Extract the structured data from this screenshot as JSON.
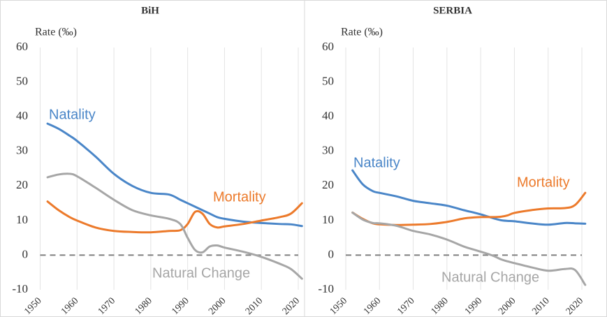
{
  "chart_data": [
    {
      "type": "line",
      "title": "BiH",
      "y_label": "Rate (‰)",
      "x": [
        1952,
        1955,
        1958,
        1960,
        1965,
        1970,
        1975,
        1980,
        1985,
        1988,
        1990,
        1992,
        1994,
        1996,
        1998,
        2000,
        2005,
        2010,
        2015,
        2018,
        2021
      ],
      "series": [
        {
          "name": "Natality",
          "color": "#4a86c8",
          "values": [
            38,
            36.5,
            34.5,
            33,
            28.5,
            23.5,
            20,
            18,
            17.5,
            16,
            15,
            14,
            13,
            12,
            11,
            10.5,
            9.7,
            9.3,
            9,
            8.9,
            8.4
          ]
        },
        {
          "name": "Mortality",
          "color": "#ec7a2b",
          "values": [
            15.5,
            13,
            11,
            10,
            8,
            7,
            6.7,
            6.6,
            7,
            7.2,
            9,
            12.5,
            12,
            9,
            8,
            8.3,
            9,
            10,
            11,
            12,
            15
          ]
        },
        {
          "name": "Natural Change",
          "color": "#a6a6a6",
          "values": [
            22.5,
            23.3,
            23.5,
            22.8,
            19.5,
            16,
            13,
            11.5,
            10.5,
            9,
            5,
            1.5,
            0.8,
            2.5,
            2.8,
            2.2,
            1,
            -0.5,
            -2.5,
            -4,
            -6.8
          ]
        }
      ],
      "xlim": [
        1950,
        2020
      ],
      "xticks": [
        1950,
        1960,
        1970,
        1980,
        1990,
        2000,
        2010,
        2020
      ],
      "ylim": [
        -10,
        60
      ],
      "yticks": [
        -10,
        0,
        10,
        20,
        30,
        40,
        50,
        60
      ],
      "grid": "x"
    },
    {
      "type": "line",
      "title": "SERBIA",
      "y_label": "Rate (‰)",
      "x": [
        1952,
        1955,
        1958,
        1960,
        1965,
        1970,
        1975,
        1980,
        1985,
        1988,
        1990,
        1992,
        1994,
        1996,
        1998,
        2000,
        2005,
        2010,
        2015,
        2018,
        2021
      ],
      "series": [
        {
          "name": "Natality",
          "color": "#4a86c8",
          "values": [
            24.5,
            20.5,
            18.5,
            18,
            17,
            15.7,
            15,
            14.3,
            13,
            12.3,
            11.8,
            11.2,
            10.6,
            10.1,
            9.9,
            9.8,
            9.2,
            8.8,
            9.3,
            9.2,
            9.1
          ]
        },
        {
          "name": "Mortality",
          "color": "#ec7a2b",
          "values": [
            12.3,
            10.5,
            9.2,
            8.9,
            8.7,
            8.8,
            9,
            9.6,
            10.6,
            10.9,
            11,
            11,
            11,
            11.1,
            11.5,
            12.2,
            13,
            13.5,
            13.6,
            14.5,
            18
          ]
        },
        {
          "name": "Natural Change",
          "color": "#a6a6a6",
          "values": [
            12.3,
            10.3,
            9.3,
            9.2,
            8.5,
            7,
            6,
            4.5,
            2.5,
            1.6,
            1,
            0.4,
            -0.3,
            -1.2,
            -1.8,
            -2.3,
            -3.5,
            -4.5,
            -4,
            -4.3,
            -8.6
          ]
        }
      ],
      "xlim": [
        1950,
        2020
      ],
      "xticks": [
        1950,
        1960,
        1970,
        1980,
        1990,
        2000,
        2010,
        2020
      ],
      "ylim": [
        -10,
        60
      ],
      "yticks": [
        -10,
        0,
        10,
        20,
        30,
        40,
        50,
        60
      ],
      "grid": "x"
    }
  ]
}
